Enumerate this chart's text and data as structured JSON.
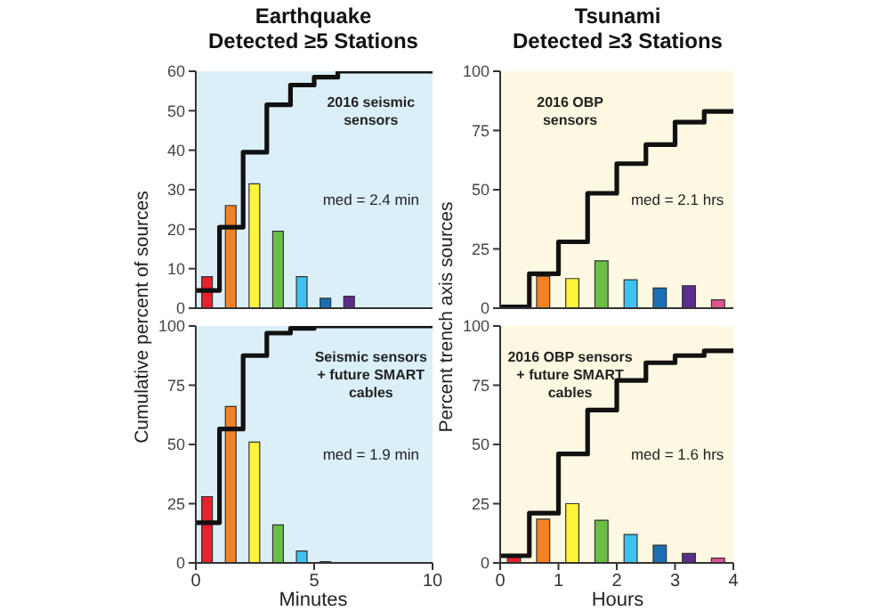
{
  "chart_data": [
    {
      "type": "histogram",
      "title": "Earthquake\nDetected ≥5 Stations",
      "ylabel": "Cumulative percent of sources",
      "annotations": [
        "2016 seismic\nsensors",
        "med = 2.4 min"
      ],
      "bins": [
        0,
        1,
        2,
        3,
        4,
        5,
        6,
        7,
        8,
        9,
        10
      ],
      "values": [
        8,
        26,
        31.5,
        19.5,
        8,
        2.5,
        3,
        0,
        0,
        0
      ],
      "colors": [
        "#e8202a",
        "#f58220",
        "#fff33b",
        "#6bbf44",
        "#3fc3ee",
        "#1a6fb5",
        "#5b2d8e",
        "#5b2d8e",
        "#5b2d8e",
        "#5b2d8e"
      ],
      "series": [
        {
          "type": "step",
          "color": "#111111",
          "x": [
            0,
            1,
            2,
            3,
            4,
            5,
            6,
            10
          ],
          "values": [
            4.5,
            20.5,
            39.5,
            51.5,
            56.5,
            58.5,
            60,
            60
          ]
        }
      ],
      "xlim": [
        0,
        10
      ],
      "xticks": [
        0,
        5,
        10
      ],
      "ylim": [
        0,
        60
      ],
      "yticks": [
        0,
        10,
        20,
        30,
        40,
        50,
        60
      ],
      "tick_labels": "y"
    },
    {
      "type": "histogram",
      "title": "Tsunami\nDetected ≥3 Stations",
      "ylabel": "Percent trench axis sources",
      "annotations": [
        "2016 OBP\nsensors",
        "med = 2.1 hrs"
      ],
      "bins": [
        0,
        0.5,
        1,
        1.5,
        2,
        2.5,
        3,
        3.5,
        4
      ],
      "values": [
        1,
        13.5,
        12.5,
        20,
        12,
        8.5,
        9.5,
        3.5
      ],
      "colors": [
        "#e8202a",
        "#f58220",
        "#fff33b",
        "#6bbf44",
        "#3fc3ee",
        "#1a6fb5",
        "#5b2d8e",
        "#e0548f"
      ],
      "series": [
        {
          "type": "step",
          "color": "#111111",
          "x": [
            0,
            0.5,
            1,
            1.5,
            2,
            2.5,
            3,
            3.5,
            4
          ],
          "values": [
            0.5,
            14.5,
            28,
            48.5,
            61,
            69,
            78.5,
            83,
            83
          ]
        }
      ],
      "xlim": [
        0,
        4
      ],
      "xticks": [
        0,
        1,
        2,
        3,
        4
      ],
      "ylim": [
        0,
        100
      ],
      "yticks": [
        0,
        25,
        50,
        75,
        100
      ],
      "tick_labels": "y"
    },
    {
      "type": "histogram",
      "xlabel": "Minutes",
      "annotations": [
        "Seismic sensors\n+ future SMART\ncables",
        "med = 1.9 min"
      ],
      "bins": [
        0,
        1,
        2,
        3,
        4,
        5,
        6,
        7,
        8,
        9,
        10
      ],
      "values": [
        28,
        66,
        51,
        16,
        5,
        0.5,
        0,
        0,
        0,
        0
      ],
      "colors": [
        "#e8202a",
        "#f58220",
        "#fff33b",
        "#6bbf44",
        "#3fc3ee",
        "#1a6fb5",
        "#5b2d8e",
        "#5b2d8e",
        "#5b2d8e",
        "#5b2d8e"
      ],
      "series": [
        {
          "type": "step",
          "color": "#111111",
          "x": [
            0,
            1,
            2,
            3,
            4,
            5,
            10
          ],
          "values": [
            17,
            56.5,
            87.5,
            97,
            99,
            100,
            100
          ]
        }
      ],
      "xlim": [
        0,
        10
      ],
      "xticks": [
        0,
        5,
        10
      ],
      "ylim": [
        0,
        100
      ],
      "yticks": [
        0,
        25,
        50,
        75,
        100
      ]
    },
    {
      "type": "histogram",
      "xlabel": "Hours",
      "annotations": [
        "2016 OBP sensors\n+ future SMART\ncables",
        "med = 1.6 hrs"
      ],
      "bins": [
        0,
        0.5,
        1,
        1.5,
        2,
        2.5,
        3,
        3.5,
        4
      ],
      "values": [
        2.5,
        18.5,
        25,
        18,
        12,
        7.5,
        4,
        2
      ],
      "colors": [
        "#e8202a",
        "#f58220",
        "#fff33b",
        "#6bbf44",
        "#3fc3ee",
        "#1a6fb5",
        "#5b2d8e",
        "#e0548f"
      ],
      "series": [
        {
          "type": "step",
          "color": "#111111",
          "x": [
            0,
            0.5,
            1,
            1.5,
            2,
            2.5,
            3,
            3.5,
            4
          ],
          "values": [
            3,
            21,
            46,
            64.5,
            77,
            84.5,
            87.5,
            89.5,
            89.5
          ]
        }
      ],
      "xlim": [
        0,
        4
      ],
      "xticks": [
        0,
        1,
        2,
        3,
        4
      ],
      "ylim": [
        0,
        100
      ],
      "yticks": [
        0,
        25,
        50,
        75,
        100
      ]
    }
  ]
}
